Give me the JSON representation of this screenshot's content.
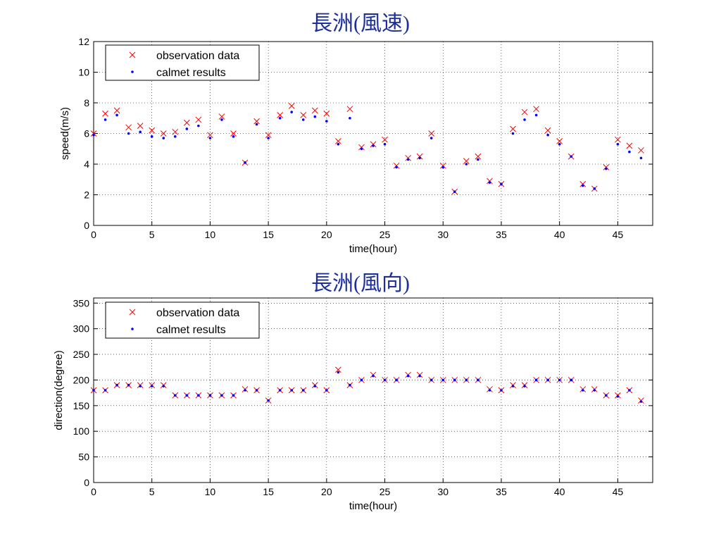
{
  "chart_data": [
    {
      "type": "scatter",
      "title": "長洲(風速)",
      "xlabel": "time(hour)",
      "ylabel": "speed(m/s)",
      "xlim": [
        0,
        48
      ],
      "ylim": [
        0,
        12
      ],
      "xticks": [
        0,
        5,
        10,
        15,
        20,
        25,
        30,
        35,
        40,
        45
      ],
      "yticks": [
        0,
        2,
        4,
        6,
        8,
        10,
        12
      ],
      "grid": true,
      "legend_position": "top-left",
      "series": [
        {
          "name": "observation data",
          "marker": "x",
          "color": "#ff0000",
          "x": [
            0,
            1,
            2,
            3,
            4,
            5,
            6,
            7,
            8,
            9,
            10,
            11,
            12,
            13,
            14,
            15,
            16,
            17,
            18,
            19,
            20,
            21,
            22,
            23,
            24,
            25,
            26,
            27,
            28,
            29,
            30,
            31,
            32,
            33,
            34,
            35,
            36,
            37,
            38,
            39,
            40,
            41,
            42,
            43,
            44,
            45,
            46,
            47
          ],
          "y": [
            6.0,
            7.3,
            7.5,
            6.4,
            6.5,
            6.2,
            6.0,
            6.1,
            6.7,
            6.9,
            5.9,
            7.1,
            6.0,
            4.1,
            6.8,
            5.9,
            7.2,
            7.8,
            7.2,
            7.5,
            7.3,
            5.5,
            7.6,
            5.1,
            5.3,
            5.6,
            3.9,
            4.4,
            4.5,
            6.0,
            3.9,
            2.2,
            4.2,
            4.5,
            2.9,
            2.7,
            6.3,
            7.4,
            7.6,
            6.2,
            5.5,
            4.5,
            2.7,
            2.4,
            3.8,
            5.6,
            5.2,
            4.9
          ]
        },
        {
          "name": "calmet results",
          "marker": "dot",
          "color": "#0000ff",
          "x": [
            0,
            1,
            2,
            3,
            4,
            5,
            6,
            7,
            8,
            9,
            10,
            11,
            12,
            13,
            14,
            15,
            16,
            17,
            18,
            19,
            20,
            21,
            22,
            23,
            24,
            25,
            26,
            27,
            28,
            29,
            30,
            31,
            32,
            33,
            34,
            35,
            36,
            37,
            38,
            39,
            40,
            41,
            42,
            43,
            44,
            45,
            46,
            47
          ],
          "y": [
            5.9,
            6.9,
            7.2,
            6.0,
            6.1,
            5.8,
            5.7,
            5.8,
            6.3,
            6.5,
            5.7,
            6.9,
            5.8,
            4.1,
            6.6,
            5.7,
            7.0,
            7.4,
            6.9,
            7.1,
            6.8,
            5.3,
            7.0,
            5.0,
            5.2,
            5.3,
            3.8,
            4.3,
            4.4,
            5.7,
            3.8,
            2.2,
            4.0,
            4.3,
            2.8,
            2.7,
            6.0,
            6.9,
            7.2,
            5.9,
            5.3,
            4.5,
            2.6,
            2.4,
            3.7,
            5.3,
            4.8,
            4.4
          ]
        }
      ]
    },
    {
      "type": "scatter",
      "title": "長洲(風向)",
      "xlabel": "time(hour)",
      "ylabel": "direction(degree)",
      "xlim": [
        0,
        48
      ],
      "ylim": [
        0,
        360
      ],
      "xticks": [
        0,
        5,
        10,
        15,
        20,
        25,
        30,
        35,
        40,
        45
      ],
      "yticks": [
        0,
        50,
        100,
        150,
        200,
        250,
        300,
        350
      ],
      "grid": true,
      "legend_position": "top-left",
      "series": [
        {
          "name": "observation data",
          "marker": "x",
          "color": "#ff0000",
          "x": [
            0,
            1,
            2,
            3,
            4,
            5,
            6,
            7,
            8,
            9,
            10,
            11,
            12,
            13,
            14,
            15,
            16,
            17,
            18,
            19,
            20,
            21,
            22,
            23,
            24,
            25,
            26,
            27,
            28,
            29,
            30,
            31,
            32,
            33,
            34,
            35,
            36,
            37,
            38,
            39,
            40,
            41,
            42,
            43,
            44,
            45,
            46,
            47
          ],
          "y": [
            180,
            180,
            190,
            190,
            190,
            190,
            190,
            170,
            170,
            170,
            170,
            170,
            170,
            182,
            180,
            160,
            180,
            180,
            180,
            190,
            180,
            220,
            190,
            200,
            210,
            200,
            200,
            210,
            210,
            200,
            200,
            200,
            200,
            200,
            182,
            180,
            190,
            190,
            200,
            200,
            200,
            200,
            182,
            182,
            170,
            170,
            180,
            160
          ]
        },
        {
          "name": "calmet results",
          "marker": "dot",
          "color": "#0000ff",
          "x": [
            0,
            1,
            2,
            3,
            4,
            5,
            6,
            7,
            8,
            9,
            10,
            11,
            12,
            13,
            14,
            15,
            16,
            17,
            18,
            19,
            20,
            21,
            22,
            23,
            24,
            25,
            26,
            27,
            28,
            29,
            30,
            31,
            32,
            33,
            34,
            35,
            36,
            37,
            38,
            39,
            40,
            41,
            42,
            43,
            44,
            45,
            46,
            47
          ],
          "y": [
            180,
            180,
            190,
            190,
            188,
            188,
            188,
            170,
            170,
            170,
            170,
            170,
            170,
            180,
            180,
            160,
            180,
            180,
            180,
            188,
            180,
            215,
            190,
            200,
            208,
            200,
            200,
            208,
            208,
            200,
            200,
            200,
            200,
            200,
            180,
            180,
            188,
            188,
            200,
            200,
            200,
            200,
            180,
            180,
            170,
            168,
            180,
            158
          ]
        }
      ]
    }
  ]
}
